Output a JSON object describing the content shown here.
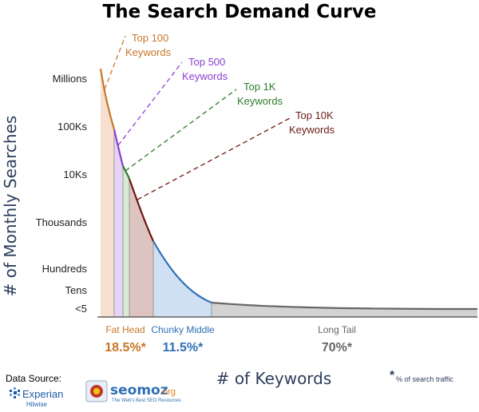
{
  "chart_data": {
    "type": "area",
    "title": "The Search Demand Curve",
    "ylabel": "# of Monthly Searches",
    "xlabel": "# of Keywords",
    "y_scale": "log",
    "y_ticks": [
      "Millions",
      "100Ks",
      "10Ks",
      "Thousands",
      "Hundreds",
      "Tens",
      "<5"
    ],
    "callouts": [
      {
        "line1": "Top 100",
        "line2": "Keywords",
        "color": "#c8772a"
      },
      {
        "line1": "Top 500",
        "line2": "Keywords",
        "color": "#8a3fd1"
      },
      {
        "line1": "Top 1K",
        "line2": "Keywords",
        "color": "#2e7a2a"
      },
      {
        "line1": "Top 10K",
        "line2": "Keywords",
        "color": "#6b1a12"
      }
    ],
    "segments": [
      {
        "label": "Fat Head",
        "share": "18.5%*",
        "share_value": 18.5,
        "color": "#c8772a"
      },
      {
        "label": "Chunky Middle",
        "share": "11.5%*",
        "share_value": 11.5,
        "color": "#2e6fb5"
      },
      {
        "label": "Long Tail",
        "share": "70%*",
        "share_value": 70,
        "color": "#666666"
      }
    ],
    "footnote": {
      "mark": "*",
      "text": "% of search traffic"
    }
  },
  "source": {
    "label": "Data Source:",
    "experian": "Experian",
    "hitwise": "Hitwise",
    "seomoz": "seomoz",
    "seomoz_suffix": ".org",
    "seomoz_tagline": "The Web's Best SEO Resources"
  }
}
